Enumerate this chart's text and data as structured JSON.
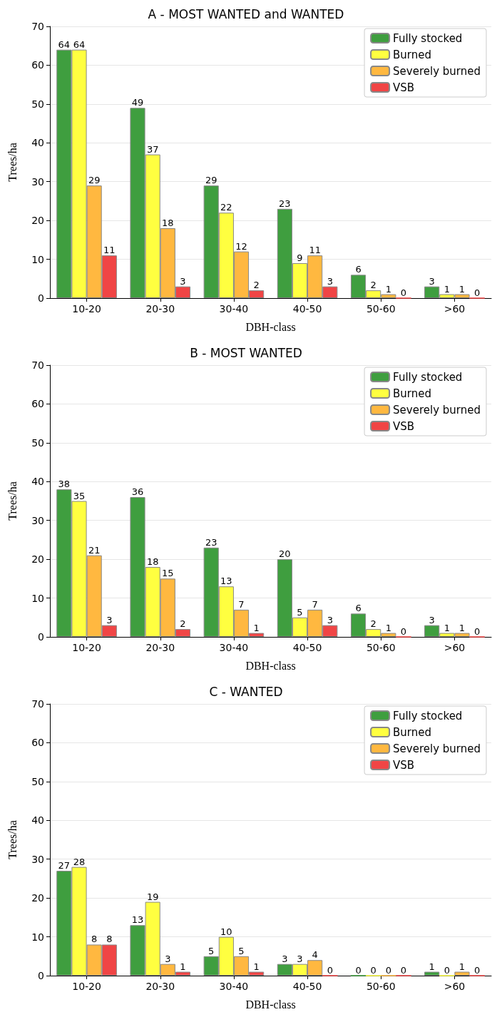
{
  "chart_data": [
    {
      "type": "bar",
      "title": "A - MOST WANTED and WANTED",
      "xlabel": "DBH-class",
      "ylabel": "Trees/ha",
      "categories": [
        "10-20",
        "20-30",
        "30-40",
        "40-50",
        "50-60",
        ">60"
      ],
      "ylim": [
        0,
        70
      ],
      "yticks": [
        0,
        10,
        20,
        30,
        40,
        50,
        60,
        70
      ],
      "grid": "y",
      "legend": "top right",
      "data_labels": true,
      "series": [
        {
          "name": "Fully stocked",
          "color": "#3f9e3f",
          "values": [
            64,
            49,
            29,
            23,
            6,
            3
          ]
        },
        {
          "name": "Burned",
          "color": "#ffff40",
          "values": [
            64,
            37,
            22,
            9,
            2,
            1
          ]
        },
        {
          "name": "Severely burned",
          "color": "#ffb840",
          "values": [
            29,
            18,
            12,
            11,
            1,
            1
          ]
        },
        {
          "name": "VSB",
          "color": "#f04545",
          "values": [
            11,
            3,
            2,
            3,
            0,
            0
          ]
        }
      ]
    },
    {
      "type": "bar",
      "title": "B - MOST WANTED",
      "xlabel": "DBH-class",
      "ylabel": "Trees/ha",
      "categories": [
        "10-20",
        "20-30",
        "30-40",
        "40-50",
        "50-60",
        ">60"
      ],
      "ylim": [
        0,
        70
      ],
      "yticks": [
        0,
        10,
        20,
        30,
        40,
        50,
        60,
        70
      ],
      "grid": "y",
      "legend": "top right",
      "data_labels": true,
      "series": [
        {
          "name": "Fully stocked",
          "color": "#3f9e3f",
          "values": [
            38,
            36,
            23,
            20,
            6,
            3
          ]
        },
        {
          "name": "Burned",
          "color": "#ffff40",
          "values": [
            35,
            18,
            13,
            5,
            2,
            1
          ]
        },
        {
          "name": "Severely burned",
          "color": "#ffb840",
          "values": [
            21,
            15,
            7,
            7,
            1,
            1
          ]
        },
        {
          "name": "VSB",
          "color": "#f04545",
          "values": [
            3,
            2,
            1,
            3,
            0,
            0
          ]
        }
      ]
    },
    {
      "type": "bar",
      "title": "C - WANTED",
      "xlabel": "DBH-class",
      "ylabel": "Trees/ha",
      "categories": [
        "10-20",
        "20-30",
        "30-40",
        "40-50",
        "50-60",
        ">60"
      ],
      "ylim": [
        0,
        70
      ],
      "yticks": [
        0,
        10,
        20,
        30,
        40,
        50,
        60,
        70
      ],
      "grid": "y",
      "legend": "top right",
      "data_labels": true,
      "series": [
        {
          "name": "Fully stocked",
          "color": "#3f9e3f",
          "values": [
            27,
            13,
            5,
            3,
            0,
            1
          ]
        },
        {
          "name": "Burned",
          "color": "#ffff40",
          "values": [
            28,
            19,
            10,
            3,
            0,
            0
          ]
        },
        {
          "name": "Severely burned",
          "color": "#ffb840",
          "values": [
            8,
            3,
            5,
            4,
            0,
            1
          ]
        },
        {
          "name": "VSB",
          "color": "#f04545",
          "values": [
            8,
            1,
            1,
            0,
            0,
            0
          ]
        }
      ]
    }
  ]
}
